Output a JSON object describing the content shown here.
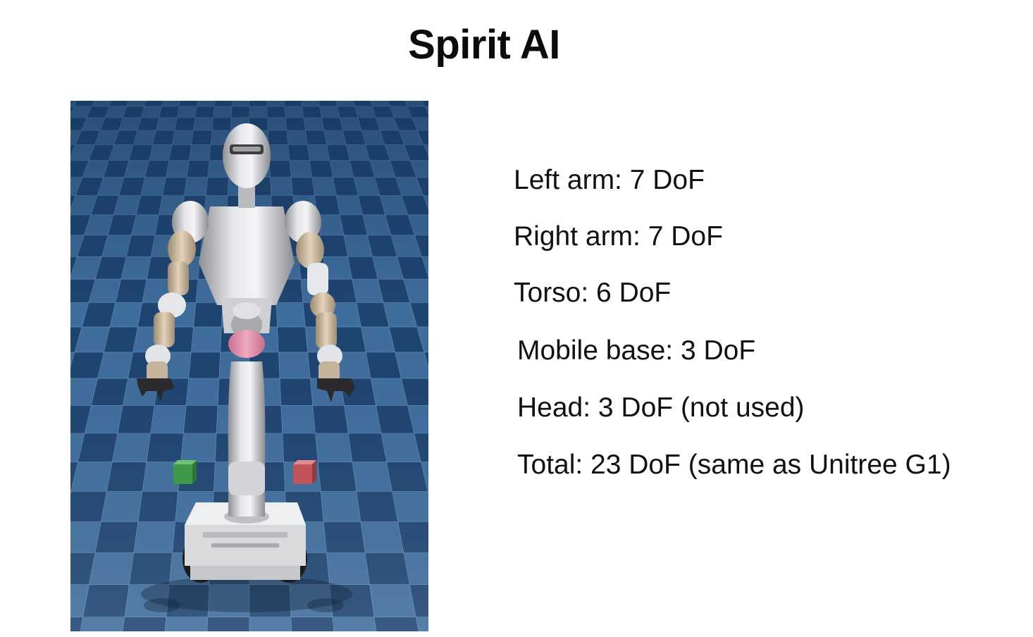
{
  "slide": {
    "title": "Spirit AI"
  },
  "simulation": {
    "floor_color_dark": "#1e4470",
    "floor_color_light": "#3f6d9c",
    "robot_color": "#c8c9cc",
    "joint_color": "#c6b59a",
    "pelvis_color": "#e497b0",
    "green_cube": "#3e9a48",
    "red_cube": "#c05458"
  },
  "specs": [
    {
      "text": "Left arm: 7 DoF"
    },
    {
      "text": "Right arm: 7 DoF"
    },
    {
      "text": "Torso: 6 DoF"
    },
    {
      "text": "Mobile base: 3 DoF"
    },
    {
      "text": "Head: 3 DoF (not used)"
    },
    {
      "text": "Total: 23 DoF (same as Unitree G1)"
    }
  ]
}
